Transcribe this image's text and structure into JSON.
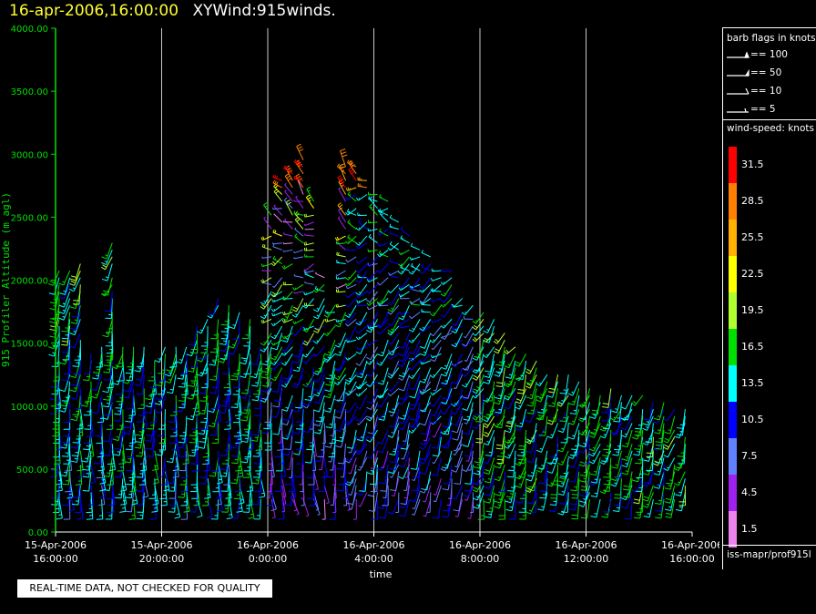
{
  "title": {
    "date": "16-apr-2006,16:00:00",
    "name": "XYWind:915winds."
  },
  "quality_note": "REAL-TIME DATA, NOT CHECKED FOR QUALITY",
  "legend": {
    "flags_heading": "barb flags in knots",
    "flags": [
      {
        "label": "== 100"
      },
      {
        "label": "== 50"
      },
      {
        "label": "== 10"
      },
      {
        "label": "== 5"
      }
    ],
    "speed_heading": "wind-speed: knots",
    "speed_bins": [
      {
        "label": "31.5",
        "color": "#ff0000"
      },
      {
        "label": "28.5",
        "color": "#ff8000"
      },
      {
        "label": "25.5",
        "color": "#ffb000"
      },
      {
        "label": "22.5",
        "color": "#ffff00"
      },
      {
        "label": "19.5",
        "color": "#b0ff30"
      },
      {
        "label": "16.5",
        "color": "#00e000"
      },
      {
        "label": "13.5",
        "color": "#00ffff"
      },
      {
        "label": "10.5",
        "color": "#0000ff"
      },
      {
        "label": "7.5",
        "color": "#6080ff"
      },
      {
        "label": "4.5",
        "color": "#a020f0"
      },
      {
        "label": "1.5",
        "color": "#ee82ee"
      }
    ],
    "source": "iss-mapr/prof915l"
  },
  "chart_data": {
    "type": "wind-barb",
    "xlabel": "time",
    "ylabel": "915 Profiler Altitude (m agl)",
    "ylim": [
      0,
      4000
    ],
    "y_ticks": [
      "0.00",
      "500.00",
      "1000.00",
      "1500.00",
      "2000.00",
      "2500.00",
      "3000.00",
      "3500.00",
      "4000.00"
    ],
    "xlim_hours": [
      0,
      24
    ],
    "x_ticks": [
      {
        "date": "15-Apr-2006",
        "time": "16:00:00"
      },
      {
        "date": "15-Apr-2006",
        "time": "20:00:00"
      },
      {
        "date": "16-Apr-2006",
        "time": "0:00:00"
      },
      {
        "date": "16-Apr-2006",
        "time": "4:00:00"
      },
      {
        "date": "16-Apr-2006",
        "time": "8:00:00"
      },
      {
        "date": "16-Apr-2006",
        "time": "12:00:00"
      },
      {
        "date": "16-Apr-2006",
        "time": "16:00:00"
      }
    ],
    "vertical_grid": true,
    "profile_interval_min": 24,
    "gate_spacing_m": 55,
    "lowest_gate_m": 260,
    "profiles_top_m": [
      2100,
      2100,
      2150,
      1500,
      1500,
      2300,
      1500,
      1500,
      1500,
      1500,
      1500,
      1500,
      1550,
      1650,
      1700,
      1900,
      1900,
      1750,
      1700,
      1500,
      2550,
      2800,
      3000,
      3000,
      2700,
      2100,
      1800,
      2900,
      2900,
      2800,
      2700,
      2650,
      2500,
      2400,
      2300,
      2200,
      2100,
      2100,
      1900,
      1850,
      1800,
      1700,
      1650,
      1500,
      1450,
      1400,
      1350,
      1300,
      1250,
      1200,
      1200,
      1150,
      1150,
      1100,
      1100,
      1100,
      1050,
      1050,
      1000,
      1000
    ],
    "wind_regimes": [
      {
        "from_hour": 0,
        "to_hour": 8,
        "low_dir_deg": 170,
        "high_dir_deg": 230,
        "low_speed_kt": 12,
        "high_speed_kt": 16
      },
      {
        "from_hour": 8,
        "to_hour": 11,
        "low_dir_deg": 160,
        "high_dir_deg": 300,
        "low_speed_kt": 6,
        "high_speed_kt": 22
      },
      {
        "from_hour": 11,
        "to_hour": 16,
        "low_dir_deg": 200,
        "high_dir_deg": 280,
        "low_speed_kt": 8,
        "high_speed_kt": 14
      },
      {
        "from_hour": 16,
        "to_hour": 24,
        "low_dir_deg": 200,
        "high_dir_deg": 250,
        "low_speed_kt": 14,
        "high_speed_kt": 18
      }
    ],
    "speed_range_kt": [
      0,
      33
    ]
  }
}
